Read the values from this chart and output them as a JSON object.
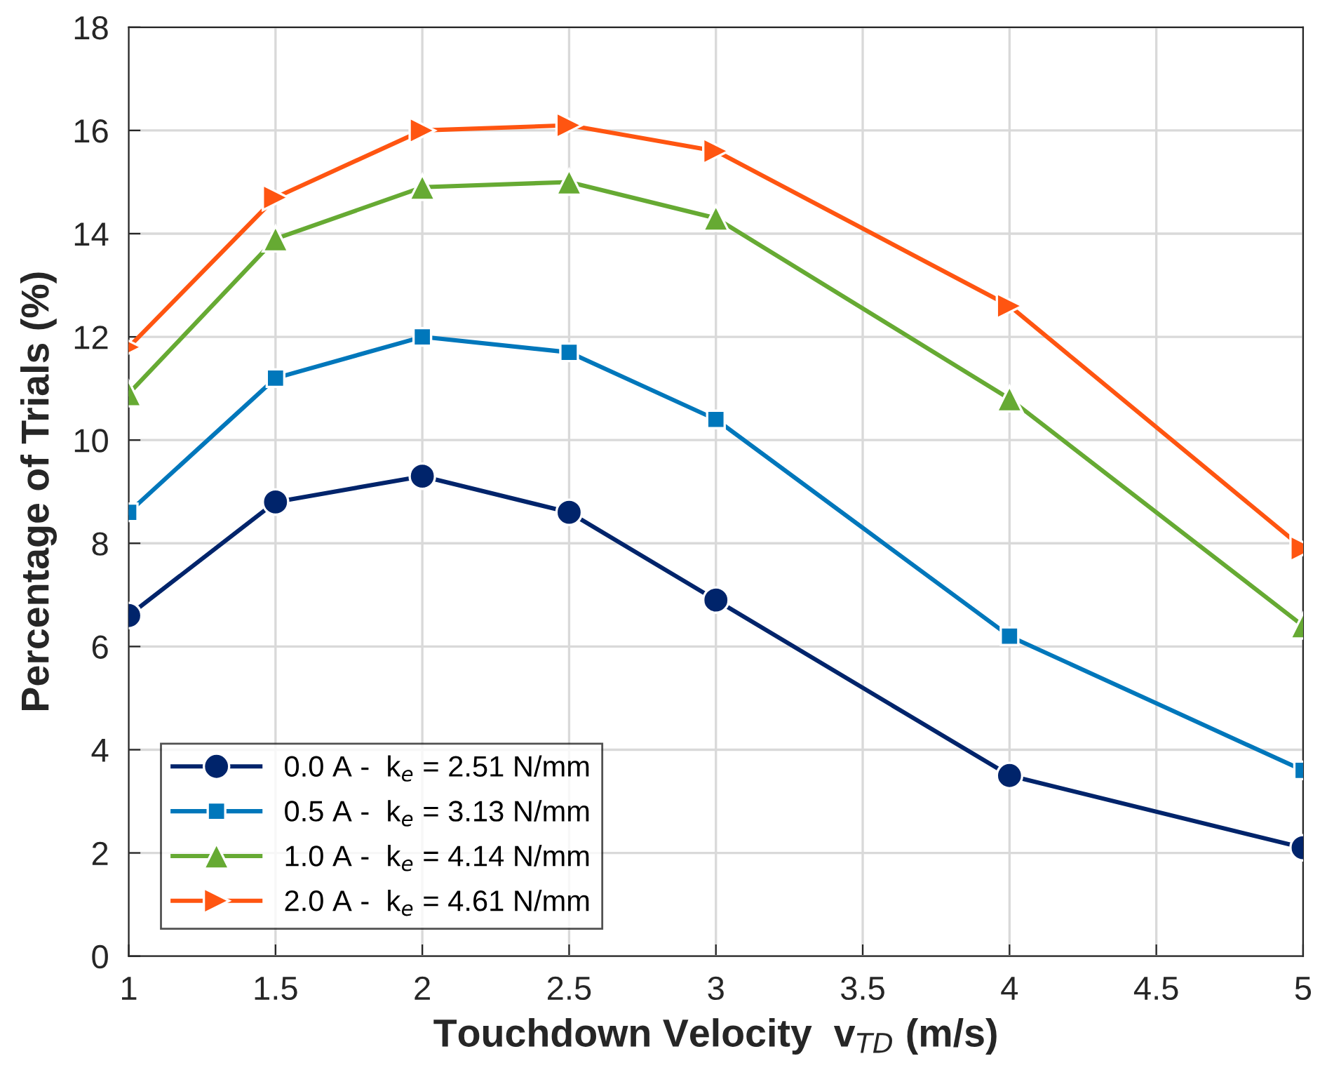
{
  "chart_data": {
    "type": "line",
    "xlabel": "Touchdown Velocity  v$_{TD}$ (m/s)",
    "ylabel": "Percentage of Trials (%)",
    "x": [
      1,
      1.5,
      2,
      2.5,
      3,
      4,
      5
    ],
    "series": [
      {
        "name": "0.0 A -  k$_{e}$ = 2.51 N/mm",
        "color": "#00246b",
        "marker": "circle",
        "values": [
          6.6,
          8.8,
          9.3,
          8.6,
          6.9,
          3.5,
          2.1
        ]
      },
      {
        "name": "0.5 A -  k$_{e}$ = 3.13 N/mm",
        "color": "#0077bb",
        "marker": "square",
        "values": [
          8.6,
          11.2,
          12.0,
          11.7,
          10.4,
          6.2,
          3.6
        ]
      },
      {
        "name": "1.0 A -  k$_{e}$ = 4.14 N/mm",
        "color": "#66aa33",
        "marker": "triangle",
        "values": [
          10.9,
          13.9,
          14.9,
          15.0,
          14.3,
          10.8,
          6.4
        ]
      },
      {
        "name": "2.0 A -  k$_{e}$ = 4.61 N/mm",
        "color": "#ff5511",
        "marker": "triangle_right",
        "values": [
          11.8,
          14.7,
          16.0,
          16.1,
          15.6,
          12.6,
          7.9
        ]
      }
    ],
    "xlim": [
      1,
      5
    ],
    "xticks": [
      1,
      1.5,
      2,
      2.5,
      3,
      3.5,
      4,
      4.5,
      5
    ],
    "ylim": [
      0,
      18
    ],
    "yticks": [
      0,
      2,
      4,
      6,
      8,
      10,
      12,
      14,
      16,
      18
    ],
    "grid": true,
    "legend": "bottom left",
    "line_style": "solid"
  }
}
